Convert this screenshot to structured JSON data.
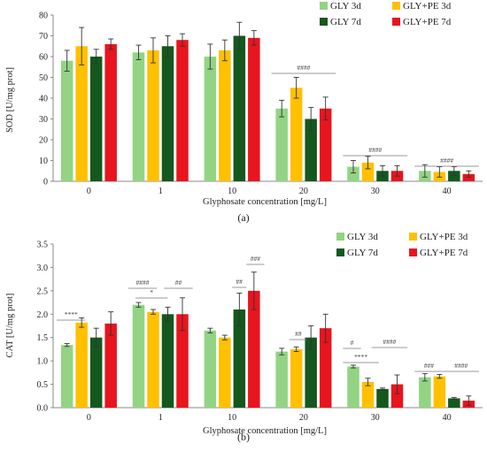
{
  "chart_data": [
    {
      "type": "bar",
      "panel": "(a)",
      "categories": [
        "0",
        "1",
        "10",
        "20",
        "30",
        "40"
      ],
      "xlabel": "Glyphosate concentration [mg/L]",
      "ylabel": "SOD [U/mg prot]",
      "ylim": [
        0,
        80
      ],
      "yticks": [
        "0",
        "10",
        "20",
        "30",
        "40",
        "50",
        "60",
        "70",
        "80"
      ],
      "grid": false,
      "legend_position": "top-right",
      "series": [
        {
          "name": "GLY 3d",
          "color": "#92D484",
          "values": [
            58,
            62,
            60,
            35,
            7,
            5
          ],
          "errors": [
            5,
            3.5,
            6,
            4,
            3,
            3
          ]
        },
        {
          "name": "GLY+PE 3d",
          "color": "#FFC000",
          "values": [
            65,
            63,
            63,
            45,
            9,
            4.5
          ],
          "errors": [
            9,
            6,
            5,
            5,
            3,
            2.5
          ]
        },
        {
          "name": "GLY 7d",
          "color": "#14581E",
          "values": [
            60,
            65,
            70,
            30,
            5,
            5
          ],
          "errors": [
            3.5,
            5,
            6.5,
            5.5,
            2.5,
            2
          ]
        },
        {
          "name": "GLY+PE 7d",
          "color": "#E8141E",
          "values": [
            66,
            68,
            69,
            35,
            5,
            3.5
          ],
          "errors": [
            2.5,
            3,
            3.5,
            5.5,
            2.5,
            1.5
          ]
        }
      ],
      "annotations": [
        {
          "category": "20",
          "text": "####"
        },
        {
          "category": "30",
          "text": "####"
        },
        {
          "category": "40",
          "text": "####"
        }
      ]
    },
    {
      "type": "bar",
      "panel": "(b)",
      "categories": [
        "0",
        "1",
        "10",
        "20",
        "30",
        "40"
      ],
      "xlabel": "Glyphosate concentration [mg/L]",
      "ylabel": "CAT [U/mg prot]",
      "ylim": [
        0,
        3.5
      ],
      "yticks": [
        "0.0",
        "0.5",
        "1.0",
        "1.5",
        "2.0",
        "2.5",
        "3.0",
        "3.5"
      ],
      "grid": false,
      "legend_position": "top-right",
      "series": [
        {
          "name": "GLY 3d",
          "color": "#92D484",
          "values": [
            1.34,
            2.2,
            1.65,
            1.2,
            0.88,
            0.65
          ],
          "errors": [
            0.03,
            0.05,
            0.05,
            0.07,
            0.03,
            0.08
          ]
        },
        {
          "name": "GLY+PE 3d",
          "color": "#FFC000",
          "values": [
            1.82,
            2.05,
            1.5,
            1.25,
            0.55,
            0.67
          ],
          "errors": [
            0.1,
            0.05,
            0.05,
            0.05,
            0.08,
            0.04
          ]
        },
        {
          "name": "GLY 7d",
          "color": "#14581E",
          "values": [
            1.5,
            2.0,
            2.1,
            1.5,
            0.4,
            0.2
          ],
          "errors": [
            0.2,
            0.15,
            0.35,
            0.25,
            0.02,
            0.02
          ]
        },
        {
          "name": "GLY+PE 7d",
          "color": "#E8141E",
          "values": [
            1.8,
            2.0,
            2.5,
            1.7,
            0.5,
            0.15
          ],
          "errors": [
            0.25,
            0.35,
            0.4,
            0.3,
            0.2,
            0.1
          ]
        }
      ],
      "annotations": [
        {
          "category": "0",
          "text": "****"
        },
        {
          "category": "1",
          "text": "####"
        },
        {
          "category": "1",
          "text": "*"
        },
        {
          "category": "1",
          "text": "##"
        },
        {
          "category": "10",
          "text": "##"
        },
        {
          "category": "10",
          "text": "###"
        },
        {
          "category": "20",
          "text": "##"
        },
        {
          "category": "30",
          "text": "#"
        },
        {
          "category": "30",
          "text": "****"
        },
        {
          "category": "30",
          "text": "####"
        },
        {
          "category": "40",
          "text": "###"
        },
        {
          "category": "40",
          "text": "####"
        }
      ]
    }
  ]
}
